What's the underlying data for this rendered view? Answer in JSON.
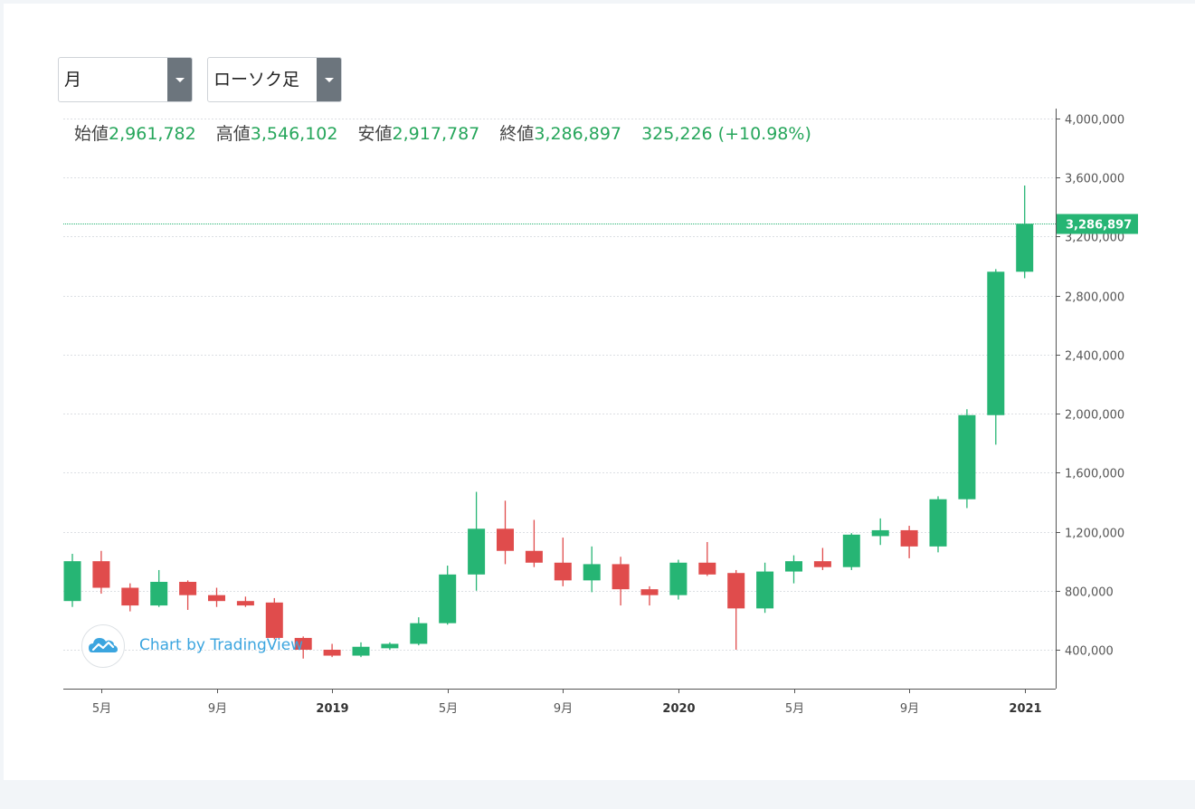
{
  "controls": {
    "period": {
      "selected": "月"
    },
    "chart_type": {
      "selected": "ローソク足"
    }
  },
  "ohlc_header": {
    "open_label": "始値",
    "open_value": "2,961,782",
    "high_label": "高値",
    "high_value": "3,546,102",
    "low_label": "安値",
    "low_value": "2,917,787",
    "close_label": "終値",
    "close_value": "3,286,897",
    "change": "325,226 (+10.98%)"
  },
  "last_price_label": "3,286,897",
  "watermark": {
    "text": "Chart by TradingView",
    "icon": "tradingview-cloud-icon"
  },
  "colors": {
    "up": "#26b574",
    "down": "#e04c4c",
    "grid": "#dcdfe3",
    "axis": "#555555",
    "accent": "#3ba5df"
  },
  "chart_data": {
    "type": "candlestick",
    "y_ticks": [
      "400,000",
      "800,000",
      "1,200,000",
      "1,600,000",
      "2,000,000",
      "2,400,000",
      "2,800,000",
      "3,200,000",
      "3,600,000",
      "4,000,000"
    ],
    "y_tick_values": [
      400000,
      800000,
      1200000,
      1600000,
      2000000,
      2400000,
      2800000,
      3200000,
      3600000,
      4000000
    ],
    "ylim": [
      240000,
      4000000
    ],
    "x_ticks": [
      {
        "index": 1,
        "label": "5月",
        "bold": false
      },
      {
        "index": 5,
        "label": "9月",
        "bold": false
      },
      {
        "index": 9,
        "label": "2019",
        "bold": true
      },
      {
        "index": 13,
        "label": "5月",
        "bold": false
      },
      {
        "index": 17,
        "label": "9月",
        "bold": false
      },
      {
        "index": 21,
        "label": "2020",
        "bold": true
      },
      {
        "index": 25,
        "label": "5月",
        "bold": false
      },
      {
        "index": 29,
        "label": "9月",
        "bold": false
      },
      {
        "index": 33,
        "label": "2021",
        "bold": true
      }
    ],
    "last_price": 3286897,
    "grid": true,
    "candles": [
      {
        "o": 730000,
        "h": 1050000,
        "l": 690000,
        "c": 1000000
      },
      {
        "o": 1000000,
        "h": 1070000,
        "l": 780000,
        "c": 820000
      },
      {
        "o": 820000,
        "h": 850000,
        "l": 660000,
        "c": 700000
      },
      {
        "o": 700000,
        "h": 940000,
        "l": 690000,
        "c": 860000
      },
      {
        "o": 860000,
        "h": 870000,
        "l": 670000,
        "c": 770000
      },
      {
        "o": 770000,
        "h": 820000,
        "l": 690000,
        "c": 730000
      },
      {
        "o": 730000,
        "h": 760000,
        "l": 690000,
        "c": 700000
      },
      {
        "o": 720000,
        "h": 750000,
        "l": 470000,
        "c": 480000
      },
      {
        "o": 480000,
        "h": 490000,
        "l": 340000,
        "c": 400000
      },
      {
        "o": 400000,
        "h": 440000,
        "l": 350000,
        "c": 360000
      },
      {
        "o": 360000,
        "h": 450000,
        "l": 350000,
        "c": 420000
      },
      {
        "o": 410000,
        "h": 450000,
        "l": 400000,
        "c": 440000
      },
      {
        "o": 440000,
        "h": 620000,
        "l": 430000,
        "c": 580000
      },
      {
        "o": 580000,
        "h": 970000,
        "l": 570000,
        "c": 910000
      },
      {
        "o": 910000,
        "h": 1470000,
        "l": 800000,
        "c": 1220000
      },
      {
        "o": 1220000,
        "h": 1410000,
        "l": 980000,
        "c": 1070000
      },
      {
        "o": 1070000,
        "h": 1280000,
        "l": 960000,
        "c": 990000
      },
      {
        "o": 990000,
        "h": 1160000,
        "l": 830000,
        "c": 870000
      },
      {
        "o": 870000,
        "h": 1100000,
        "l": 790000,
        "c": 980000
      },
      {
        "o": 980000,
        "h": 1030000,
        "l": 700000,
        "c": 810000
      },
      {
        "o": 810000,
        "h": 830000,
        "l": 700000,
        "c": 770000
      },
      {
        "o": 770000,
        "h": 1010000,
        "l": 740000,
        "c": 990000
      },
      {
        "o": 990000,
        "h": 1130000,
        "l": 900000,
        "c": 910000
      },
      {
        "o": 920000,
        "h": 940000,
        "l": 400000,
        "c": 680000
      },
      {
        "o": 680000,
        "h": 990000,
        "l": 650000,
        "c": 930000
      },
      {
        "o": 930000,
        "h": 1040000,
        "l": 850000,
        "c": 1000000
      },
      {
        "o": 1000000,
        "h": 1090000,
        "l": 940000,
        "c": 960000
      },
      {
        "o": 960000,
        "h": 1190000,
        "l": 940000,
        "c": 1180000
      },
      {
        "o": 1170000,
        "h": 1290000,
        "l": 1110000,
        "c": 1210000
      },
      {
        "o": 1210000,
        "h": 1240000,
        "l": 1020000,
        "c": 1100000
      },
      {
        "o": 1100000,
        "h": 1440000,
        "l": 1060000,
        "c": 1420000
      },
      {
        "o": 1420000,
        "h": 2030000,
        "l": 1360000,
        "c": 1990000
      },
      {
        "o": 1990000,
        "h": 2980000,
        "l": 1790000,
        "c": 2961782
      },
      {
        "o": 2961782,
        "h": 3546102,
        "l": 2917787,
        "c": 3286897
      }
    ]
  }
}
